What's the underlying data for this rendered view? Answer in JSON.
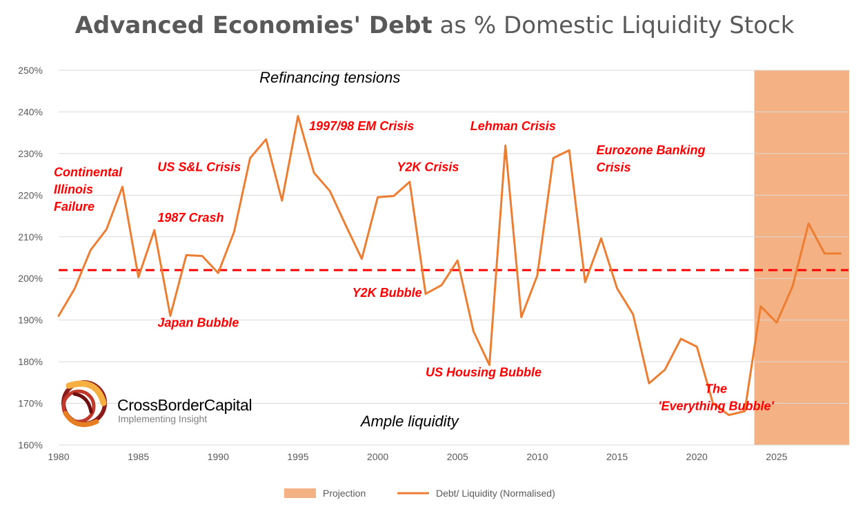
{
  "chart_data": {
    "type": "line",
    "title_bold": "Advanced Economies' Debt",
    "title_rest": " as % Domestic Liquidity Stock",
    "xlim": [
      1980,
      2029.5
    ],
    "ylim": [
      160,
      250
    ],
    "x_ticks": [
      1980,
      1985,
      1990,
      1995,
      2000,
      2005,
      2010,
      2015,
      2020,
      2025
    ],
    "y_ticks": [
      160,
      170,
      180,
      190,
      200,
      210,
      220,
      230,
      240,
      250
    ],
    "y_tick_labels": [
      "160%",
      "170%",
      "180%",
      "190%",
      "200%",
      "210%",
      "220%",
      "230%",
      "240%",
      "250%"
    ],
    "grid": "horizontal",
    "series": [
      {
        "name": "Debt/ Liquidity (Normalised)",
        "color": "#ED7D31",
        "x": [
          1980,
          1981,
          1982,
          1983,
          1984,
          1985,
          1986,
          1987,
          1988,
          1989,
          1990,
          1991,
          1992,
          1993,
          1994,
          1995,
          1996,
          1997,
          1998,
          1999,
          2000,
          2001,
          2002,
          2003,
          2004,
          2005,
          2006,
          2007,
          2008,
          2009,
          2010,
          2011,
          2012,
          2013,
          2014,
          2015,
          2016,
          2017,
          2018,
          2019,
          2020,
          2021,
          2022,
          2023,
          2024,
          2025,
          2026,
          2027,
          2028,
          2029
        ],
        "y": [
          191,
          197.5,
          206.8,
          211.8,
          222,
          200.3,
          211.6,
          191,
          205.6,
          205.4,
          201.3,
          211.2,
          228.9,
          233.4,
          218.7,
          239,
          225.4,
          221,
          212.7,
          204.7,
          219.5,
          219.8,
          223.2,
          196.3,
          198.4,
          204.3,
          187.3,
          179.2,
          231.9,
          190.7,
          200.7,
          228.9,
          230.8,
          199.1,
          209.6,
          197.6,
          191.4,
          174.8,
          178.1,
          185.5,
          183.6,
          170.1,
          167.2,
          168.1,
          193.3,
          189.4,
          198.1,
          213.2,
          206,
          206
        ]
      }
    ],
    "reference_line": {
      "y": 202,
      "color": "#FF0000"
    },
    "projection": {
      "name": "Projection",
      "x_start": 2023.6,
      "x_end": 2029.5,
      "color": "#F4B183"
    },
    "annotations": [
      {
        "lines": [
          "Refinancing tensions"
        ],
        "x": 1997,
        "y": 247,
        "style": "black"
      },
      {
        "lines": [
          "Ample liquidity"
        ],
        "x": 2002,
        "y": 164.5,
        "style": "black"
      },
      {
        "lines": [
          "Continental",
          "Illinois",
          "Failure"
        ],
        "x": 1979.7,
        "y": 224.5,
        "style": "red"
      },
      {
        "lines": [
          "US S&L Crisis"
        ],
        "x": 1986.2,
        "y": 225.8,
        "style": "red"
      },
      {
        "lines": [
          "1987 Crash"
        ],
        "x": 1986.2,
        "y": 213.6,
        "style": "red"
      },
      {
        "lines": [
          "Japan Bubble"
        ],
        "x": 1986.2,
        "y": 188.4,
        "style": "red"
      },
      {
        "lines": [
          "1997/98 EM Crisis"
        ],
        "x": 1995.7,
        "y": 235.6,
        "style": "red"
      },
      {
        "lines": [
          "Y2K Crisis"
        ],
        "x": 2001.2,
        "y": 225.8,
        "style": "red"
      },
      {
        "lines": [
          "Y2K Bubble"
        ],
        "x": 1998.4,
        "y": 195.6,
        "style": "red"
      },
      {
        "lines": [
          "Lehman Crisis"
        ],
        "x": 2005.8,
        "y": 235.6,
        "style": "red"
      },
      {
        "lines": [
          "Eurozone Banking",
          "Crisis"
        ],
        "x": 2013.7,
        "y": 229.8,
        "style": "red"
      },
      {
        "lines": [
          "US Housing Bubble"
        ],
        "x": 2003,
        "y": 176.5,
        "style": "red"
      },
      {
        "lines": [
          "The",
          "'Everything Bubble'"
        ],
        "x": 2021.2,
        "y": 172.5,
        "style": "red",
        "anchor": "middle"
      }
    ],
    "legend": {
      "placement": "bottom",
      "items": [
        {
          "label": "Projection",
          "kind": "swatch",
          "color": "#F4B183"
        },
        {
          "label": "Debt/ Liquidity (Normalised)",
          "kind": "line",
          "color": "#ED7D31"
        }
      ]
    }
  },
  "logo": {
    "company": "CrossBorderCapital",
    "tagline": "Implementing Insight"
  }
}
